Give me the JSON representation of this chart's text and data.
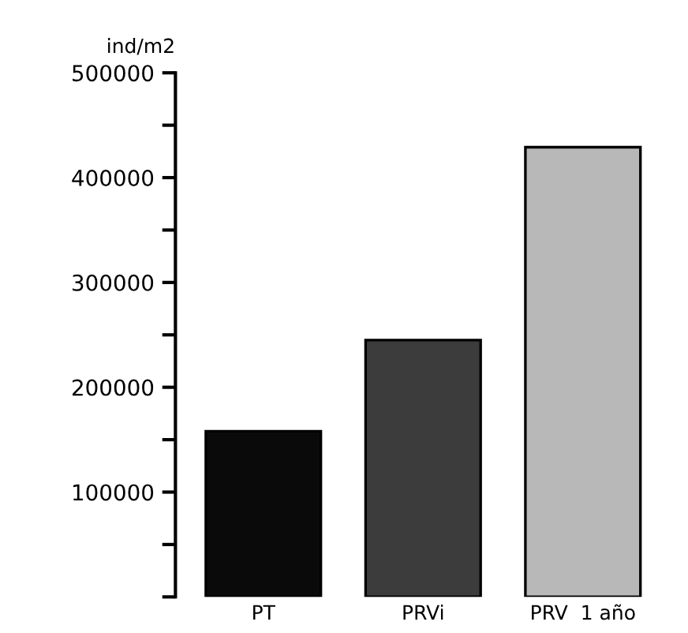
{
  "chart_data": {
    "type": "bar",
    "ylabel": "ind/m2",
    "categories": [
      "PT",
      "PRVi",
      "PRV  1 año"
    ],
    "values": [
      158000,
      245000,
      429000
    ],
    "colors": [
      "#0a0a0a",
      "#3c3c3c",
      "#b8b8b8"
    ],
    "ylim": [
      0,
      500000
    ],
    "yticks": [
      {
        "value": 0,
        "label": null
      },
      {
        "value": 50000,
        "label": null
      },
      100000,
      {
        "value": 150000,
        "label": null
      },
      200000,
      {
        "value": 250000,
        "label": null
      },
      300000,
      {
        "value": 350000,
        "label": null
      },
      400000,
      {
        "value": 450000,
        "label": null
      },
      500000
    ],
    "grid": false,
    "legend": false
  }
}
